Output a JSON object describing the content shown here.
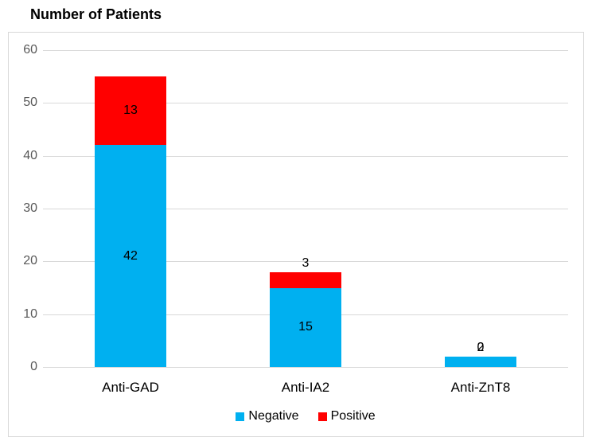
{
  "chart_data": {
    "type": "bar",
    "stacked": true,
    "title": "Number of Patients",
    "categories": [
      "Anti-GAD",
      "Anti-IA2",
      "Anti-ZnT8"
    ],
    "series": [
      {
        "name": "Negative",
        "color": "#00B0F0",
        "values": [
          42,
          15,
          2
        ]
      },
      {
        "name": "Positive",
        "color": "#FF0000",
        "values": [
          13,
          3,
          0
        ]
      }
    ],
    "stack_totals": [
      55,
      18,
      2
    ],
    "xlabel": "",
    "ylabel": "",
    "ylim": [
      0,
      60
    ],
    "yticks": [
      0,
      10,
      20,
      30,
      40,
      50,
      60
    ],
    "grid": true,
    "data_labels": true,
    "legend_position": "bottom",
    "colors": {
      "grid": "#D9D9D9",
      "border": "#D9D9D9",
      "axis_text": "#595959",
      "label_text": "#000000",
      "background": "#FFFFFF"
    }
  }
}
